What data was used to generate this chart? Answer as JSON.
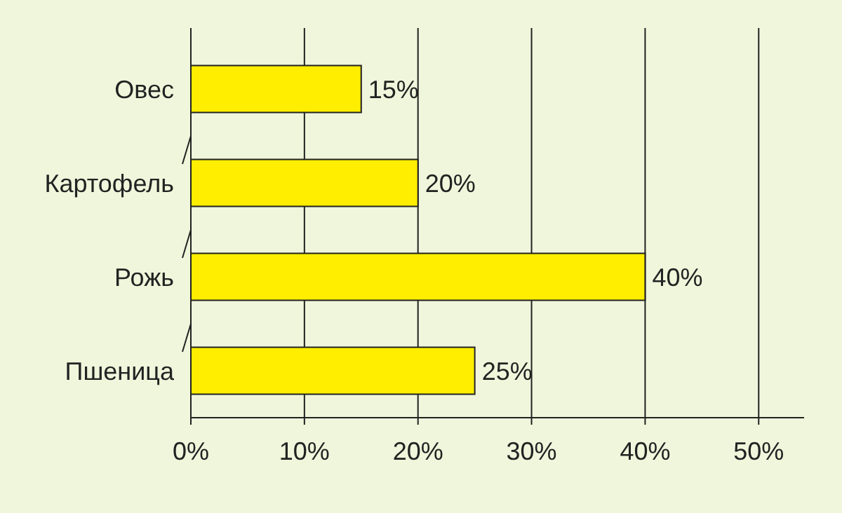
{
  "chart_data": {
    "type": "bar",
    "orientation": "horizontal",
    "categories": [
      "Овес",
      "Картофель",
      "Рожь",
      "Пшеница"
    ],
    "values": [
      15,
      20,
      40,
      25
    ],
    "color": "#ffee00",
    "value_labels": [
      "15%",
      "20%",
      "40%",
      "25%"
    ],
    "xlim": [
      0,
      54
    ],
    "xticks": [
      {
        "value": 0,
        "label": "0%"
      },
      {
        "value": 10,
        "label": "10%"
      },
      {
        "value": 20,
        "label": "20%"
      },
      {
        "value": 30,
        "label": "30%"
      },
      {
        "value": 40,
        "label": "40%"
      },
      {
        "value": 50,
        "label": "50%"
      }
    ],
    "grid": "x"
  }
}
